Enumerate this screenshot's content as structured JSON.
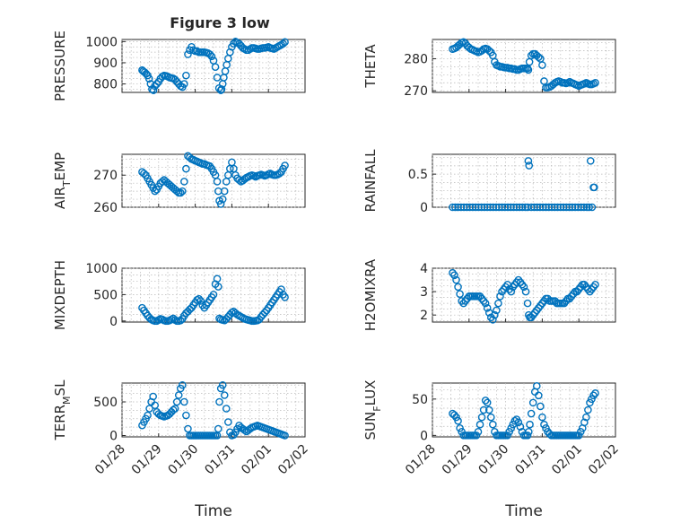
{
  "figure_title": "Figure 3 low",
  "chart_data": [
    {
      "type": "scatter",
      "ylabel": "PRESSURE",
      "yticks": [
        "800",
        "900",
        "1000"
      ],
      "ylim": [
        760,
        1010
      ],
      "xticks": [],
      "xlabel": "",
      "x": [
        0.55,
        0.58,
        0.62,
        0.66,
        0.7,
        0.74,
        0.78,
        0.82,
        0.86,
        0.9,
        0.95,
        1.0,
        1.05,
        1.1,
        1.15,
        1.2,
        1.25,
        1.3,
        1.35,
        1.4,
        1.45,
        1.5,
        1.55,
        1.6,
        1.65,
        1.7,
        1.75,
        1.8,
        1.85,
        1.9,
        1.95,
        2.0,
        2.05,
        2.1,
        2.15,
        2.2,
        2.25,
        2.3,
        2.35,
        2.4,
        2.45,
        2.5,
        2.55,
        2.6,
        2.65,
        2.7,
        2.72,
        2.75,
        2.78,
        2.82,
        2.86,
        2.9,
        2.95,
        3.0,
        3.05,
        3.1,
        3.15,
        3.2,
        3.25,
        3.3,
        3.35,
        3.4,
        3.45,
        3.5,
        3.55,
        3.6,
        3.65,
        3.7,
        3.75,
        3.8,
        3.85,
        3.9,
        3.95,
        4.0,
        4.05,
        4.1,
        4.15,
        4.2,
        4.25,
        4.3,
        4.35,
        4.4,
        4.45
      ],
      "y": [
        865,
        860,
        855,
        848,
        840,
        825,
        800,
        775,
        770,
        790,
        800,
        810,
        825,
        835,
        840,
        838,
        835,
        830,
        828,
        826,
        820,
        810,
        800,
        790,
        785,
        800,
        840,
        940,
        960,
        975,
        960,
        955,
        955,
        950,
        950,
        950,
        950,
        948,
        945,
        940,
        930,
        910,
        880,
        830,
        780,
        770,
        775,
        800,
        830,
        860,
        890,
        920,
        950,
        975,
        990,
        1000,
        995,
        990,
        980,
        970,
        965,
        960,
        960,
        965,
        970,
        970,
        968,
        965,
        965,
        968,
        970,
        970,
        972,
        975,
        970,
        968,
        965,
        970,
        975,
        980,
        985,
        990,
        998
      ],
      "xlim": [
        0,
        5
      ]
    },
    {
      "type": "scatter",
      "ylabel": "THETA",
      "yticks": [
        "270",
        "280"
      ],
      "ylim": [
        269.5,
        286
      ],
      "xticks": [],
      "xlabel": "",
      "x": [
        0.55,
        0.6,
        0.65,
        0.7,
        0.75,
        0.8,
        0.85,
        0.9,
        0.95,
        1.0,
        1.05,
        1.1,
        1.15,
        1.2,
        1.25,
        1.3,
        1.35,
        1.4,
        1.45,
        1.5,
        1.55,
        1.6,
        1.65,
        1.7,
        1.75,
        1.8,
        1.85,
        1.9,
        1.95,
        2.0,
        2.05,
        2.1,
        2.15,
        2.2,
        2.25,
        2.3,
        2.35,
        2.4,
        2.45,
        2.5,
        2.55,
        2.6,
        2.62,
        2.65,
        2.7,
        2.75,
        2.8,
        2.85,
        2.9,
        2.95,
        3.0,
        3.05,
        3.1,
        3.15,
        3.2,
        3.25,
        3.3,
        3.35,
        3.4,
        3.45,
        3.5,
        3.55,
        3.6,
        3.65,
        3.7,
        3.75,
        3.8,
        3.85,
        3.9,
        3.95,
        4.0,
        4.05,
        4.1,
        4.15,
        4.2,
        4.25,
        4.3,
        4.35,
        4.4,
        4.45
      ],
      "y": [
        283,
        283.2,
        283.5,
        284,
        284.5,
        285,
        285.2,
        284.8,
        284,
        283.5,
        283,
        282.8,
        282.5,
        282.3,
        282,
        282.2,
        282.5,
        283,
        283.2,
        283,
        282.5,
        282,
        281,
        279,
        278,
        277.8,
        277.5,
        277.5,
        277.3,
        277.2,
        277.2,
        277,
        277,
        276.8,
        276.8,
        276.5,
        276.5,
        276.8,
        277,
        277,
        277,
        277,
        276.5,
        279,
        281,
        281.5,
        281.5,
        281,
        280.5,
        280,
        278,
        273,
        271,
        271,
        271.2,
        271.5,
        272,
        272.5,
        272.8,
        273,
        272.8,
        272.5,
        272.5,
        272.3,
        272.5,
        272.8,
        272.5,
        272.3,
        272,
        271.8,
        271.5,
        271.8,
        272,
        272.2,
        272.5,
        272.2,
        272,
        272,
        272.2,
        272.5
      ],
      "xlim": [
        0,
        5
      ]
    },
    {
      "type": "scatter",
      "ylabel": "AIR_TEMP",
      "ylabel_parts": [
        "AIR",
        "T",
        "EMP"
      ],
      "yticks": [
        "260",
        "270"
      ],
      "ylim": [
        260,
        276.5
      ],
      "xticks": [],
      "xlabel": "",
      "x": [
        0.55,
        0.6,
        0.65,
        0.7,
        0.75,
        0.8,
        0.85,
        0.9,
        0.95,
        1.0,
        1.05,
        1.1,
        1.15,
        1.2,
        1.25,
        1.3,
        1.35,
        1.4,
        1.45,
        1.5,
        1.55,
        1.6,
        1.65,
        1.7,
        1.75,
        1.8,
        1.85,
        1.9,
        1.95,
        2.0,
        2.05,
        2.1,
        2.15,
        2.2,
        2.25,
        2.3,
        2.35,
        2.4,
        2.45,
        2.5,
        2.55,
        2.6,
        2.63,
        2.66,
        2.7,
        2.75,
        2.8,
        2.85,
        2.9,
        2.95,
        3.0,
        3.05,
        3.1,
        3.15,
        3.2,
        3.25,
        3.3,
        3.35,
        3.4,
        3.45,
        3.5,
        3.55,
        3.6,
        3.65,
        3.7,
        3.75,
        3.8,
        3.85,
        3.9,
        3.95,
        4.0,
        4.05,
        4.1,
        4.15,
        4.2,
        4.25,
        4.3,
        4.35,
        4.4,
        4.45
      ],
      "y": [
        271,
        270.5,
        270,
        269,
        268,
        267,
        266,
        265,
        265.5,
        266.5,
        267.5,
        268,
        268.5,
        268,
        267.5,
        267,
        266.5,
        266,
        265.5,
        265,
        264.5,
        264.5,
        265,
        268,
        272,
        276,
        275.5,
        275,
        274.8,
        274.5,
        274.3,
        274,
        273.8,
        273.5,
        273.5,
        273.2,
        273,
        272.8,
        272,
        271,
        270,
        268,
        265,
        262,
        261,
        262.5,
        265,
        268,
        270,
        272,
        274,
        272,
        270,
        269,
        268.5,
        268,
        268.3,
        268.8,
        269.2,
        269.5,
        269.8,
        270,
        269.8,
        269.5,
        269.8,
        270,
        270.2,
        270,
        269.8,
        270,
        270.3,
        270.5,
        270.2,
        270,
        270,
        270.2,
        270.5,
        271,
        272,
        273
      ],
      "xlim": [
        0,
        5
      ]
    },
    {
      "type": "scatter",
      "ylabel": "RAINFALL",
      "yticks": [
        "0",
        "0.5"
      ],
      "ylim": [
        0,
        0.8
      ],
      "xticks": [],
      "xlabel": "",
      "x": [
        0.55,
        0.62,
        0.7,
        0.78,
        0.86,
        0.94,
        1.02,
        1.1,
        1.18,
        1.26,
        1.34,
        1.42,
        1.5,
        1.58,
        1.66,
        1.74,
        1.82,
        1.9,
        1.98,
        2.06,
        2.14,
        2.22,
        2.3,
        2.38,
        2.46,
        2.54,
        2.6,
        2.62,
        2.64,
        2.7,
        2.78,
        2.86,
        2.94,
        3.02,
        3.1,
        3.18,
        3.26,
        3.34,
        3.42,
        3.5,
        3.58,
        3.66,
        3.74,
        3.82,
        3.9,
        3.98,
        4.06,
        4.14,
        4.22,
        4.28,
        4.32,
        4.36,
        4.4,
        4.42
      ],
      "y": [
        0,
        0,
        0,
        0,
        0,
        0,
        0,
        0,
        0,
        0,
        0,
        0,
        0,
        0,
        0,
        0,
        0,
        0,
        0,
        0,
        0,
        0,
        0,
        0,
        0,
        0,
        0,
        0.7,
        0.63,
        0,
        0,
        0,
        0,
        0,
        0,
        0,
        0,
        0,
        0,
        0,
        0,
        0,
        0,
        0,
        0,
        0,
        0,
        0,
        0,
        0,
        0.7,
        0,
        0.3,
        0.3
      ],
      "xlim": [
        0,
        5
      ]
    },
    {
      "type": "scatter",
      "ylabel": "MIXDEPTH",
      "yticks": [
        "0",
        "500",
        "1000"
      ],
      "ylim": [
        -20,
        1000
      ],
      "xticks": [],
      "xlabel": "",
      "x": [
        0.55,
        0.6,
        0.65,
        0.7,
        0.75,
        0.8,
        0.85,
        0.9,
        0.95,
        1.0,
        1.05,
        1.1,
        1.15,
        1.2,
        1.25,
        1.3,
        1.35,
        1.4,
        1.45,
        1.5,
        1.55,
        1.6,
        1.65,
        1.7,
        1.75,
        1.8,
        1.85,
        1.9,
        1.95,
        2.0,
        2.05,
        2.1,
        2.15,
        2.2,
        2.25,
        2.3,
        2.35,
        2.4,
        2.45,
        2.5,
        2.55,
        2.6,
        2.63,
        2.66,
        2.7,
        2.75,
        2.8,
        2.85,
        2.9,
        2.95,
        3.0,
        3.05,
        3.1,
        3.15,
        3.2,
        3.25,
        3.3,
        3.35,
        3.4,
        3.45,
        3.5,
        3.55,
        3.6,
        3.65,
        3.7,
        3.75,
        3.8,
        3.85,
        3.9,
        3.95,
        4.0,
        4.05,
        4.1,
        4.15,
        4.2,
        4.25,
        4.3,
        4.35,
        4.4,
        4.45
      ],
      "y": [
        250,
        200,
        150,
        100,
        60,
        30,
        10,
        0,
        0,
        20,
        40,
        30,
        10,
        0,
        0,
        10,
        30,
        50,
        20,
        0,
        0,
        10,
        40,
        100,
        150,
        180,
        220,
        250,
        300,
        350,
        400,
        420,
        380,
        300,
        250,
        300,
        350,
        400,
        450,
        500,
        700,
        800,
        650,
        50,
        30,
        20,
        10,
        40,
        80,
        120,
        160,
        180,
        150,
        120,
        100,
        80,
        60,
        40,
        30,
        20,
        10,
        0,
        0,
        5,
        10,
        30,
        80,
        120,
        160,
        200,
        250,
        300,
        350,
        400,
        450,
        500,
        550,
        600,
        500,
        450
      ],
      "xlim": [
        0,
        5
      ]
    },
    {
      "type": "scatter",
      "ylabel": "H2OMIXRA",
      "yticks": [
        "2",
        "3",
        "4"
      ],
      "ylim": [
        1.7,
        4
      ],
      "xticks": [],
      "xlabel": "",
      "x": [
        0.55,
        0.6,
        0.65,
        0.7,
        0.75,
        0.8,
        0.85,
        0.9,
        0.95,
        1.0,
        1.05,
        1.1,
        1.15,
        1.2,
        1.25,
        1.3,
        1.35,
        1.4,
        1.45,
        1.5,
        1.55,
        1.6,
        1.65,
        1.7,
        1.75,
        1.8,
        1.85,
        1.9,
        1.95,
        2.0,
        2.05,
        2.1,
        2.15,
        2.2,
        2.25,
        2.3,
        2.35,
        2.4,
        2.45,
        2.5,
        2.55,
        2.6,
        2.63,
        2.66,
        2.7,
        2.75,
        2.8,
        2.85,
        2.9,
        2.95,
        3.0,
        3.05,
        3.1,
        3.15,
        3.2,
        3.25,
        3.3,
        3.35,
        3.4,
        3.45,
        3.5,
        3.55,
        3.6,
        3.65,
        3.7,
        3.75,
        3.8,
        3.85,
        3.9,
        3.95,
        4.0,
        4.05,
        4.1,
        4.15,
        4.2,
        4.25,
        4.3,
        4.35,
        4.4,
        4.45
      ],
      "y": [
        3.8,
        3.7,
        3.5,
        3.2,
        2.9,
        2.6,
        2.5,
        2.6,
        2.7,
        2.8,
        2.8,
        2.8,
        2.8,
        2.8,
        2.8,
        2.8,
        2.7,
        2.6,
        2.5,
        2.3,
        2.1,
        1.9,
        1.8,
        2.0,
        2.2,
        2.5,
        2.8,
        3.0,
        3.1,
        3.2,
        3.3,
        3.1,
        3.0,
        3.2,
        3.3,
        3.4,
        3.5,
        3.4,
        3.3,
        3.2,
        3.0,
        2.5,
        2.0,
        1.9,
        1.9,
        2.0,
        2.1,
        2.2,
        2.3,
        2.4,
        2.5,
        2.6,
        2.7,
        2.7,
        2.6,
        2.6,
        2.6,
        2.6,
        2.5,
        2.5,
        2.5,
        2.5,
        2.5,
        2.6,
        2.7,
        2.7,
        2.8,
        2.9,
        3.0,
        3.0,
        3.1,
        3.2,
        3.3,
        3.3,
        3.2,
        3.1,
        3.0,
        3.1,
        3.2,
        3.3
      ],
      "xlim": [
        0,
        5
      ]
    },
    {
      "type": "scatter",
      "ylabel": "TERR_MSL",
      "ylabel_parts": [
        "TERR",
        "M",
        "SL"
      ],
      "yticks": [
        "0",
        "500"
      ],
      "ylim": [
        -20,
        780
      ],
      "xticks": [
        "01/28",
        "01/29",
        "01/30",
        "01/31",
        "02/01",
        "02/02"
      ],
      "xlabel": "Time",
      "x": [
        0.55,
        0.6,
        0.65,
        0.7,
        0.75,
        0.8,
        0.85,
        0.9,
        0.95,
        1.0,
        1.05,
        1.1,
        1.15,
        1.2,
        1.25,
        1.3,
        1.35,
        1.4,
        1.45,
        1.5,
        1.55,
        1.6,
        1.65,
        1.7,
        1.75,
        1.8,
        1.85,
        1.9,
        1.95,
        2.0,
        2.05,
        2.1,
        2.15,
        2.2,
        2.25,
        2.3,
        2.35,
        2.4,
        2.45,
        2.5,
        2.55,
        2.6,
        2.63,
        2.66,
        2.7,
        2.75,
        2.8,
        2.85,
        2.9,
        2.95,
        3.0,
        3.05,
        3.1,
        3.15,
        3.2,
        3.25,
        3.3,
        3.35,
        3.4,
        3.45,
        3.5,
        3.55,
        3.6,
        3.65,
        3.7,
        3.75,
        3.8,
        3.85,
        3.9,
        3.95,
        4.0,
        4.05,
        4.1,
        4.15,
        4.2,
        4.25,
        4.3,
        4.35,
        4.4,
        4.45
      ],
      "y": [
        150,
        200,
        250,
        300,
        400,
        500,
        580,
        450,
        350,
        320,
        300,
        290,
        280,
        290,
        300,
        320,
        350,
        380,
        400,
        500,
        600,
        700,
        750,
        500,
        300,
        100,
        0,
        0,
        0,
        0,
        0,
        0,
        0,
        0,
        0,
        0,
        0,
        0,
        0,
        0,
        0,
        0,
        100,
        500,
        700,
        750,
        600,
        400,
        200,
        50,
        0,
        10,
        50,
        100,
        150,
        120,
        100,
        80,
        60,
        80,
        100,
        120,
        130,
        140,
        150,
        140,
        130,
        120,
        110,
        100,
        90,
        80,
        70,
        60,
        50,
        40,
        30,
        20,
        10,
        0
      ],
      "xlim": [
        0,
        5
      ]
    },
    {
      "type": "scatter",
      "ylabel": "SUN_FLUX",
      "ylabel_parts": [
        "SUN",
        "F",
        "LUX"
      ],
      "yticks": [
        "0",
        "50"
      ],
      "ylim": [
        -2,
        72
      ],
      "xticks": [
        "01/28",
        "01/29",
        "01/30",
        "01/31",
        "02/01",
        "02/02"
      ],
      "xlabel": "Time",
      "x": [
        0.55,
        0.6,
        0.65,
        0.7,
        0.75,
        0.8,
        0.85,
        0.9,
        0.95,
        1.0,
        1.05,
        1.1,
        1.15,
        1.2,
        1.25,
        1.3,
        1.35,
        1.4,
        1.45,
        1.5,
        1.55,
        1.6,
        1.65,
        1.7,
        1.75,
        1.8,
        1.85,
        1.9,
        1.95,
        2.0,
        2.05,
        2.1,
        2.15,
        2.2,
        2.25,
        2.3,
        2.35,
        2.4,
        2.45,
        2.5,
        2.55,
        2.6,
        2.63,
        2.66,
        2.7,
        2.75,
        2.8,
        2.85,
        2.9,
        2.95,
        3.0,
        3.05,
        3.1,
        3.15,
        3.2,
        3.25,
        3.3,
        3.35,
        3.4,
        3.45,
        3.5,
        3.55,
        3.6,
        3.65,
        3.7,
        3.75,
        3.8,
        3.85,
        3.9,
        3.95,
        4.0,
        4.05,
        4.1,
        4.15,
        4.2,
        4.25,
        4.3,
        4.35,
        4.4,
        4.45
      ],
      "y": [
        30,
        28,
        25,
        20,
        10,
        5,
        0,
        0,
        0,
        0,
        0,
        0,
        0,
        0,
        5,
        15,
        25,
        35,
        48,
        45,
        35,
        25,
        15,
        5,
        0,
        0,
        0,
        0,
        0,
        0,
        0,
        5,
        10,
        15,
        20,
        22,
        18,
        12,
        5,
        0,
        0,
        0,
        5,
        15,
        30,
        45,
        60,
        68,
        55,
        40,
        25,
        15,
        10,
        5,
        2,
        0,
        0,
        0,
        0,
        0,
        0,
        0,
        0,
        0,
        0,
        0,
        0,
        0,
        0,
        0,
        0,
        5,
        10,
        18,
        25,
        35,
        45,
        50,
        55,
        58
      ],
      "xlim": [
        0,
        5
      ]
    }
  ]
}
